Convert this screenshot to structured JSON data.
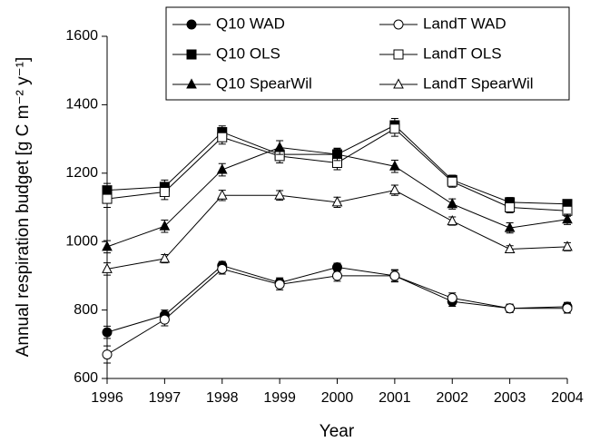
{
  "chart_data": {
    "type": "line",
    "x_label": "Year",
    "y_label": "Annual respiration budget [g C m⁻² y⁻¹]",
    "x": [
      1996,
      1997,
      1998,
      1999,
      2000,
      2001,
      2002,
      2003,
      2004
    ],
    "xlim": [
      1996,
      2004
    ],
    "xticks": [
      1996,
      1997,
      1998,
      1999,
      2000,
      2001,
      2002,
      2003,
      2004
    ],
    "ylim": [
      600,
      1600
    ],
    "yticks": [
      600,
      800,
      1000,
      1200,
      1400,
      1600
    ],
    "series": [
      {
        "name": "Q10 WAD",
        "color": "#000000",
        "marker": "circle",
        "filled": true,
        "values": [
          735,
          785,
          930,
          880,
          925,
          900,
          825,
          805,
          810
        ],
        "errors": [
          18,
          15,
          12,
          14,
          12,
          16,
          14,
          12,
          12
        ]
      },
      {
        "name": "LandT WAD",
        "color": "#000000",
        "marker": "circle",
        "filled": false,
        "values": [
          670,
          772,
          920,
          875,
          900,
          900,
          835,
          805,
          805
        ],
        "errors": [
          25,
          18,
          15,
          16,
          16,
          18,
          15,
          12,
          14
        ]
      },
      {
        "name": "Q10 OLS",
        "color": "#000000",
        "marker": "square",
        "filled": true,
        "values": [
          1150,
          1160,
          1320,
          1255,
          1255,
          1340,
          1180,
          1115,
          1110
        ],
        "errors": [
          20,
          20,
          18,
          18,
          16,
          20,
          14,
          14,
          12
        ]
      },
      {
        "name": "LandT OLS",
        "color": "#000000",
        "marker": "square",
        "filled": false,
        "values": [
          1125,
          1145,
          1305,
          1250,
          1230,
          1330,
          1175,
          1100,
          1090
        ],
        "errors": [
          25,
          22,
          20,
          20,
          20,
          22,
          16,
          16,
          16
        ]
      },
      {
        "name": "Q10 SpearWil",
        "color": "#000000",
        "marker": "triangle",
        "filled": true,
        "values": [
          985,
          1045,
          1210,
          1275,
          1255,
          1220,
          1110,
          1040,
          1065
        ],
        "errors": [
          18,
          18,
          18,
          20,
          18,
          18,
          15,
          15,
          15
        ]
      },
      {
        "name": "LandT SpearWil",
        "color": "#000000",
        "marker": "triangle",
        "filled": false,
        "values": [
          920,
          950,
          1135,
          1135,
          1115,
          1150,
          1060,
          978,
          985
        ],
        "errors": [
          18,
          12,
          15,
          14,
          15,
          15,
          12,
          10,
          12
        ]
      }
    ]
  }
}
